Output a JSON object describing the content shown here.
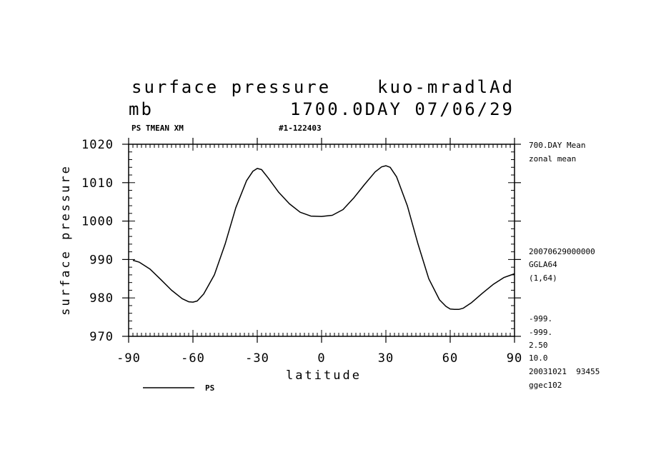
{
  "header": {
    "title": "surface pressure",
    "model": "kuo-mradlAd",
    "unit": "mb",
    "time": "1700.0DAY 07/06/29",
    "var_label": "PS TMEAN XM",
    "run_id": "#1-122403"
  },
  "side_info": {
    "top": [
      "700.DAY Mean",
      "zonal mean"
    ],
    "middle": [
      "20070629000000",
      "GGLA64",
      "(1,64)"
    ],
    "bottom": [
      "-999.",
      "-999.",
      "2.50",
      "10.0",
      "20031021  93455",
      "ggec102"
    ]
  },
  "legend": {
    "label": "PS"
  },
  "chart_data": {
    "type": "line",
    "xlabel": "latitude",
    "ylabel": "surface pressure",
    "xlim": [
      -90,
      90
    ],
    "ylim": [
      970,
      1020
    ],
    "x_ticks": [
      "-90",
      "-60",
      "-30",
      "0",
      "30",
      "60",
      "90"
    ],
    "y_ticks": [
      "970",
      "980",
      "990",
      "1000",
      "1010",
      "1020"
    ],
    "grid": false,
    "legend_position": "bottom-left",
    "series": [
      {
        "name": "PS",
        "x": [
          -88,
          -85,
          -80,
          -75,
          -70,
          -65,
          -62,
          -60,
          -58,
          -55,
          -50,
          -45,
          -40,
          -35,
          -32,
          -30,
          -28,
          -25,
          -20,
          -15,
          -10,
          -5,
          0,
          5,
          10,
          15,
          20,
          25,
          28,
          30,
          32,
          35,
          40,
          45,
          50,
          55,
          58,
          60,
          62,
          64,
          66,
          70,
          75,
          80,
          85,
          88,
          90
        ],
        "y": [
          989.8,
          989.3,
          987.5,
          984.8,
          982.0,
          979.8,
          979.0,
          978.9,
          979.2,
          981.0,
          986.0,
          994.0,
          1003.5,
          1010.5,
          1013.0,
          1013.7,
          1013.4,
          1011.3,
          1007.5,
          1004.5,
          1002.3,
          1001.3,
          1001.2,
          1001.5,
          1003.0,
          1006.0,
          1009.5,
          1012.8,
          1014.1,
          1014.4,
          1014.0,
          1011.5,
          1004.0,
          994.0,
          985.0,
          979.5,
          977.8,
          977.1,
          977.0,
          977.0,
          977.3,
          978.8,
          981.2,
          983.5,
          985.3,
          985.9,
          986.3
        ]
      }
    ]
  }
}
